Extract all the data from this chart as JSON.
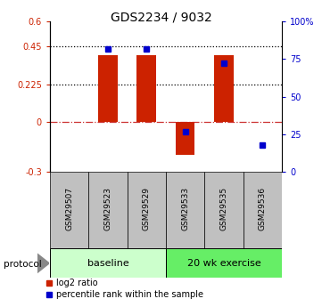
{
  "title": "GDS2234 / 9032",
  "samples": [
    "GSM29507",
    "GSM29523",
    "GSM29529",
    "GSM29533",
    "GSM29535",
    "GSM29536"
  ],
  "log2_ratio": [
    0.0,
    0.4,
    0.4,
    -0.2,
    0.4,
    0.0
  ],
  "percentile_rank": [
    null,
    82,
    82,
    27,
    72,
    18
  ],
  "ylim_left": [
    -0.3,
    0.6
  ],
  "ylim_right": [
    0,
    100
  ],
  "yticks_left": [
    -0.3,
    0,
    0.225,
    0.45,
    0.6
  ],
  "ytick_labels_left": [
    "-0.3",
    "0",
    "0.225",
    "0.45",
    "0.6"
  ],
  "yticks_right": [
    0,
    25,
    50,
    75,
    100
  ],
  "ytick_labels_right": [
    "0",
    "25",
    "50",
    "75",
    "100%"
  ],
  "hlines_dotted": [
    0.225,
    0.45
  ],
  "hline_dashdot_color": "#CC3333",
  "bar_color": "#CC2200",
  "dot_color": "#0000CC",
  "bar_width": 0.5,
  "baseline_color": "#CCFFCC",
  "exercise_color": "#66EE66",
  "protocol_label": "protocol",
  "legend_bar_label": "log2 ratio",
  "legend_dot_label": "percentile rank within the sample",
  "background_color": "#ffffff",
  "left_tick_color": "#CC2200",
  "right_tick_color": "#0000CC",
  "sample_box_color": "#C0C0C0"
}
